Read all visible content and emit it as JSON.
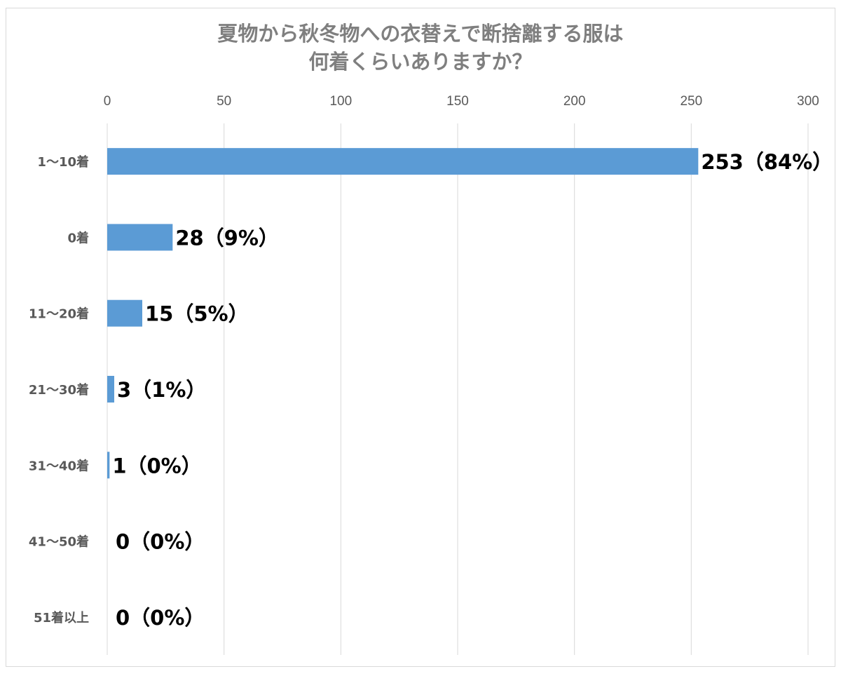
{
  "chart_data": {
    "type": "bar",
    "orientation": "horizontal",
    "title": [
      "夏物から秋冬物への衣替えで断捨離する服は",
      "何着くらいありますか？"
    ],
    "categories": [
      "1〜10着",
      "0着",
      "11〜20着",
      "21〜30着",
      "31〜40着",
      "41〜50着",
      "51着以上"
    ],
    "values": [
      253,
      28,
      15,
      3,
      1,
      0,
      0
    ],
    "data_labels": [
      "253（84%）",
      "28（9%）",
      "15（5%）",
      "3（1%）",
      "1（0%）",
      "0（0%）",
      "0（0%）"
    ],
    "xlim": [
      0,
      300
    ],
    "xticks": [
      0,
      50,
      100,
      150,
      200,
      250,
      300
    ],
    "xaxis_position": "top",
    "grid": true,
    "legend": "none",
    "bar_color": "#5b9bd5"
  }
}
